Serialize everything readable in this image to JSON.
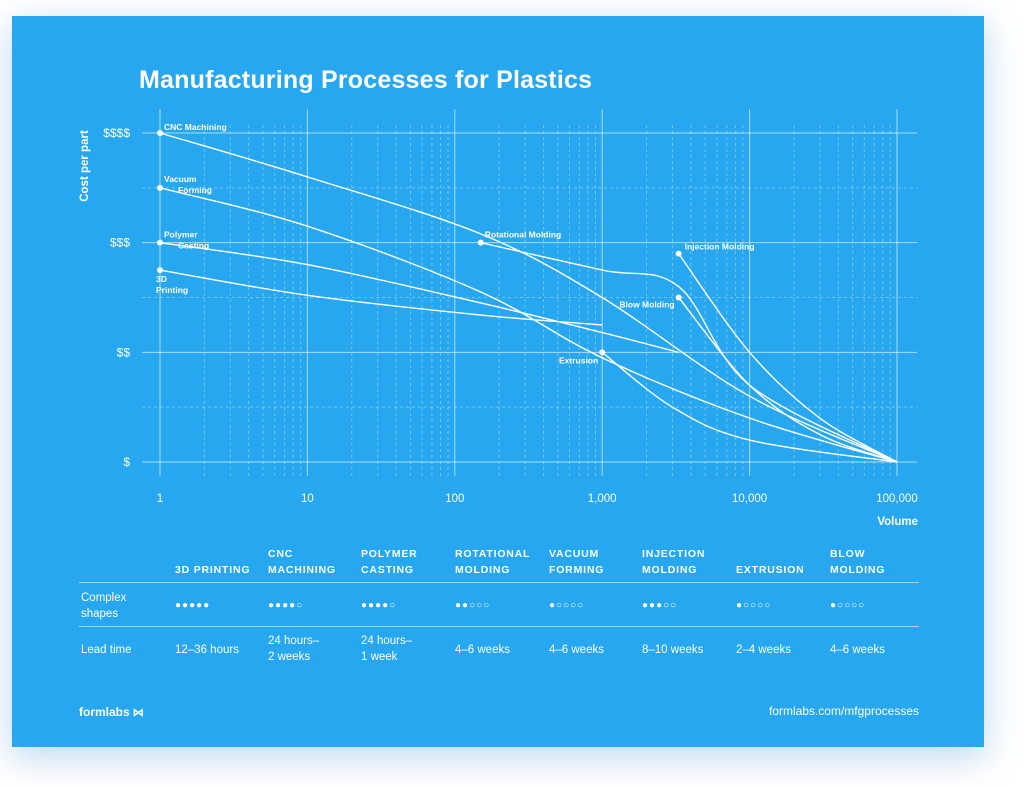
{
  "title": "Manufacturing Processes for Plastics",
  "colors": {
    "background": "#26a7ef",
    "foreground": "#ffffff"
  },
  "chart_data": {
    "type": "line",
    "xlabel": "Volume",
    "ylabel": "Cost per part",
    "xscale": "log",
    "x_ticks": [
      "1",
      "10",
      "100",
      "1,000",
      "10,000",
      "100,000"
    ],
    "y_ticks": [
      "$",
      "$$",
      "$$$",
      "$$$$"
    ],
    "xlim": [
      1,
      100000
    ],
    "ylim": [
      1,
      4
    ],
    "grid": true,
    "series": [
      {
        "name": "CNC Machining",
        "x": [
          1,
          10,
          150,
          1000,
          10000,
          100000
        ],
        "y": [
          4.0,
          3.6,
          3.08,
          2.5,
          1.6,
          1.0
        ]
      },
      {
        "name": "Vacuum Forming",
        "x": [
          1,
          10,
          150,
          1000,
          10000,
          100000
        ],
        "y": [
          3.5,
          3.15,
          2.55,
          1.95,
          1.4,
          1.0
        ]
      },
      {
        "name": "Polymer Casting",
        "x": [
          1,
          10,
          150,
          1000,
          3300
        ],
        "y": [
          3.0,
          2.8,
          2.45,
          2.18,
          2.0
        ]
      },
      {
        "name": "3D Printing",
        "x": [
          1,
          10,
          150,
          1000
        ],
        "y": [
          2.75,
          2.52,
          2.34,
          2.25
        ]
      },
      {
        "name": "Rotational Molding",
        "x": [
          150,
          1000,
          3300,
          10000,
          100000
        ],
        "y": [
          3.0,
          2.75,
          2.6,
          1.7,
          1.0
        ]
      },
      {
        "name": "Injection Molding",
        "x": [
          3300,
          10000,
          30000,
          100000
        ],
        "y": [
          2.9,
          2.0,
          1.4,
          1.0
        ]
      },
      {
        "name": "Blow Molding",
        "x": [
          3300,
          10000,
          30000,
          100000
        ],
        "y": [
          2.5,
          1.7,
          1.25,
          1.0
        ]
      },
      {
        "name": "Extrusion",
        "x": [
          1000,
          3000,
          10000,
          100000
        ],
        "y": [
          2.0,
          1.5,
          1.2,
          1.0
        ]
      }
    ],
    "point_labels": [
      {
        "text": "CNC Machining",
        "x": 1,
        "y": 4.0
      },
      {
        "text": "Vacuum\nForming",
        "x": 1,
        "y": 3.5
      },
      {
        "text": "Polymer\nCasting",
        "x": 1,
        "y": 3.0
      },
      {
        "text": "3D\nPrinting",
        "x": 1,
        "y": 2.75
      },
      {
        "text": "Rotational Molding",
        "x": 150,
        "y": 3.0
      },
      {
        "text": "Injection Molding",
        "x": 3300,
        "y": 2.9
      },
      {
        "text": "Blow Molding",
        "x": 3300,
        "y": 2.5
      },
      {
        "text": "Extrusion",
        "x": 1000,
        "y": 2.0
      }
    ]
  },
  "table": {
    "columns": [
      {
        "label": "3D PRINTING",
        "complexity": "●●●●●",
        "lead": "12–36 hours"
      },
      {
        "label": "CNC\nMACHINING",
        "complexity": "●●●●○",
        "lead": "24 hours–\n2 weeks"
      },
      {
        "label": "POLYMER\nCASTING",
        "complexity": "●●●●○",
        "lead": "24 hours–\n1 week"
      },
      {
        "label": "ROTATIONAL\nMOLDING",
        "complexity": "●●○○○",
        "lead": "4–6 weeks"
      },
      {
        "label": "VACUUM\nFORMING",
        "complexity": "●○○○○",
        "lead": "4–6 weeks"
      },
      {
        "label": "INJECTION\nMOLDING",
        "complexity": "●●●○○",
        "lead": "8–10 weeks"
      },
      {
        "label": "EXTRUSION",
        "complexity": "●○○○○",
        "lead": "2–4 weeks"
      },
      {
        "label": "BLOW\nMOLDING",
        "complexity": "●○○○○",
        "lead": "4–6 weeks"
      }
    ],
    "row_labels": {
      "complexity": "Complex\nshapes",
      "lead": "Lead time"
    }
  },
  "footer": {
    "brand": "formlabs",
    "url": "formlabs.com/mfgprocesses"
  }
}
